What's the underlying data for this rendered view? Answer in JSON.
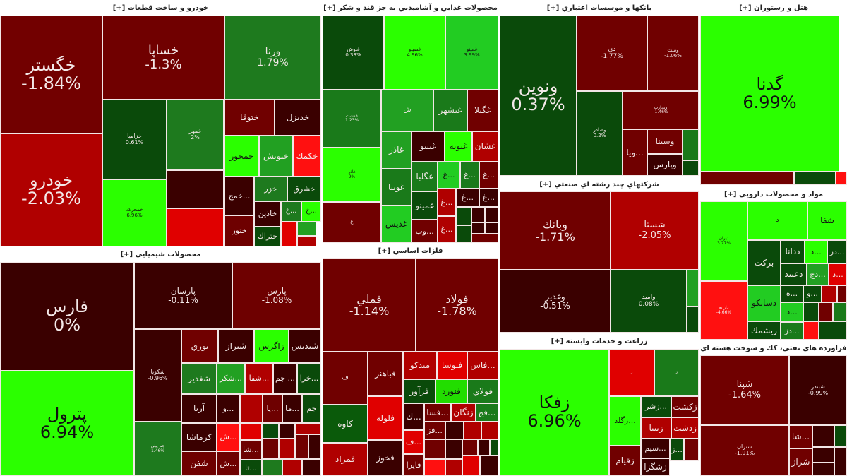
{
  "expand_label": "[+]",
  "sectors": [
    {
      "title": "خودرو و ساخت قطعات",
      "tiles": [
        {
          "name": "خگستر",
          "pct": "-1.84%",
          "color": "#720000"
        },
        {
          "name": "خودرو",
          "pct": "-2.03%",
          "color": "#b00000"
        },
        {
          "name": "خساپا",
          "pct": "-1.3%",
          "color": "#700000"
        },
        {
          "name": "ورنا",
          "pct": "1.79%",
          "color": "#1e7a1e"
        },
        {
          "name": "خزاميا",
          "pct": "0.61%",
          "color": "#0a4a0a"
        },
        {
          "name": "خمهر",
          "pct": "2%",
          "color": "#1e7a1e"
        },
        {
          "color": "#3a0000"
        },
        {
          "color": "#e00000"
        },
        {
          "name": "خمحركه",
          "pct": "6.96%",
          "color": "#2bff00"
        },
        {
          "name": "ختوقا",
          "color": "#700000"
        },
        {
          "name": "خديزل",
          "color": "#3a0000"
        },
        {
          "name": "خمحور",
          "color": "#2bff00"
        },
        {
          "name": "خيويش",
          "color": "#22a022"
        },
        {
          "name": "خكمك",
          "color": "#ff1010"
        },
        {
          "name": "خمح...",
          "color": "#3a0000"
        },
        {
          "name": "خزر",
          "color": "#1e7a1e"
        },
        {
          "name": "خشرق",
          "color": "#0a4a0a"
        },
        {
          "name": "ختور",
          "color": "#6e0000"
        },
        {
          "name": "خاذين",
          "color": "#3a0000"
        },
        {
          "name": "خ...",
          "color": "#1e7a1e"
        },
        {
          "name": "خ...",
          "color": "#2bff00"
        },
        {
          "name": "ختراك",
          "color": "#0a4a0a"
        },
        {
          "color": "#e00000"
        },
        {
          "color": "#22a022"
        },
        {
          "color": "#b00000"
        }
      ]
    },
    {
      "title": "محصولات شيميايي",
      "tiles": [
        {
          "name": "فارس",
          "pct": "0%",
          "color": "#3a0000"
        },
        {
          "name": "پترول",
          "pct": "6.94%",
          "color": "#2bff00"
        },
        {
          "name": "پارسان",
          "pct": "-0.11%",
          "color": "#3a0000"
        },
        {
          "name": "پارس",
          "pct": "-1.08%",
          "color": "#6e0000"
        },
        {
          "name": "شكويا",
          "pct": "-0.96%",
          "color": "#3a0000"
        },
        {
          "name": "جم پيلن",
          "pct": "1.46%",
          "color": "#1e7a1e"
        },
        {
          "name": "نوري",
          "color": "#700000"
        },
        {
          "name": "شيراز",
          "color": "#3a0000"
        },
        {
          "name": "زاگرس",
          "color": "#2bff00"
        },
        {
          "name": "شيديس",
          "color": "#3a0000"
        },
        {
          "name": "شغدير",
          "color": "#1e7a1e"
        },
        {
          "name": "شكر...",
          "color": "#22a022"
        },
        {
          "name": "شفا...",
          "color": "#b00000"
        },
        {
          "name": "جم ...",
          "color": "#3a0000"
        },
        {
          "name": "خرا...",
          "color": "#0a4a0a"
        },
        {
          "name": "آريا",
          "color": "#3a0000"
        },
        {
          "name": "و...",
          "color": "#3a0000"
        },
        {
          "color": "#b00000"
        },
        {
          "name": "يا...",
          "color": "#6e0000"
        },
        {
          "name": "ما...",
          "color": "#3a0000"
        },
        {
          "name": "جم",
          "color": "#0a4a0a"
        },
        {
          "name": "كرماشا",
          "color": "#3a0000"
        },
        {
          "name": "شفن",
          "color": "#6e0000"
        },
        {
          "name": "ش...",
          "color": "#ff1010"
        },
        {
          "name": "ش...",
          "color": "#6e0000"
        },
        {
          "color": "#e00000"
        },
        {
          "name": "شا...",
          "color": "#6e0000"
        },
        {
          "name": "تا...",
          "color": "#0a4a0a"
        },
        {
          "color": "#0a4a0a"
        },
        {
          "color": "#3a0000"
        },
        {
          "color": "#b00000"
        },
        {
          "color": "#6e0000"
        },
        {
          "color": "#b00000"
        },
        {
          "color": "#700000"
        },
        {
          "color": "#3a0000"
        },
        {
          "color": "#1e7a1e"
        },
        {
          "color": "#b00000"
        },
        {
          "color": "#3a0000"
        }
      ]
    },
    {
      "title": "محصولات غذايي و آشاميدني به جز قند و شكر",
      "tiles": [
        {
          "name": "غنوش",
          "pct": "0.33%",
          "color": "#0a4a0a"
        },
        {
          "name": "غصينو",
          "pct": "4.96%",
          "color": "#2bff00"
        },
        {
          "name": "غمينو",
          "pct": "3.99%",
          "color": "#22cc22"
        },
        {
          "name": "غدشت",
          "pct": "1.23%",
          "color": "#1a7a1a"
        },
        {
          "name": "غاذر",
          "pct": "9%",
          "color": "#2bff00"
        },
        {
          "name": "غ",
          "color": "#700000"
        },
        {
          "name": "ش",
          "color": "#22a022"
        },
        {
          "name": "غبشهر",
          "color": "#1a7a1a"
        },
        {
          "name": "غگيلا",
          "color": "#700000"
        },
        {
          "name": "غاذر",
          "color": "#22a022"
        },
        {
          "name": "غبينو",
          "color": "#3a0000"
        },
        {
          "name": "غبونه",
          "color": "#2bff00"
        },
        {
          "name": "غشان",
          "color": "#b00000"
        },
        {
          "name": "غويتا",
          "color": "#1a7a1a"
        },
        {
          "name": "غديس",
          "color": "#22cc22"
        },
        {
          "name": "غگلبا",
          "color": "#1a7a1a"
        },
        {
          "name": "غ...",
          "color": "#22cc22"
        },
        {
          "name": "غ...",
          "color": "#1a7a1a"
        },
        {
          "name": "غ...",
          "color": "#700000"
        },
        {
          "name": "غمينو",
          "color": "#0a4a0a"
        },
        {
          "name": "وب...",
          "color": "#700000"
        },
        {
          "name": "غ...",
          "color": "#b00000"
        },
        {
          "name": "غ...",
          "color": "#b00000"
        },
        {
          "name": "غ...",
          "color": "#3a0000"
        },
        {
          "name": "غ...",
          "color": "#3a0000"
        },
        {
          "color": "#0a4a0a"
        },
        {
          "color": "#0a4a0a"
        },
        {
          "color": "#3a0000"
        },
        {
          "color": "#3a0000"
        },
        {
          "color": "#3a0000"
        },
        {
          "color": "#3a0000"
        },
        {
          "color": "#700000"
        }
      ]
    },
    {
      "title": "فلزات اساسي",
      "tiles": [
        {
          "name": "فملي",
          "pct": "-1.14%",
          "color": "#700000"
        },
        {
          "name": "فولاد",
          "pct": "-1.78%",
          "color": "#700000"
        },
        {
          "name": "ف",
          "color": "#700000"
        },
        {
          "name": "فباهنر",
          "color": "#700000"
        },
        {
          "name": "كاوه",
          "color": "#0a5a0a"
        },
        {
          "name": "فلوله",
          "color": "#e00000"
        },
        {
          "name": "فمراد",
          "color": "#b00000"
        },
        {
          "name": "فخوز",
          "color": "#3a0000"
        },
        {
          "name": "ميدكو",
          "color": "#b00000"
        },
        {
          "name": "فتوسا",
          "color": "#e00000"
        },
        {
          "name": "فاس...",
          "color": "#b00000"
        },
        {
          "name": "فرآور",
          "color": "#0a4a0a"
        },
        {
          "name": "فنورد",
          "color": "#22dd00"
        },
        {
          "name": "فولاي",
          "color": "#1a7a1a"
        },
        {
          "name": "ك...",
          "color": "#3a0000"
        },
        {
          "name": "فسا...",
          "color": "#700000"
        },
        {
          "name": "زنگان",
          "color": "#b00000"
        },
        {
          "name": "فج...",
          "color": "#1a7a1a"
        },
        {
          "name": "ف...",
          "color": "#e00000"
        },
        {
          "name": "فايرا",
          "color": "#700000"
        },
        {
          "name": "فز...",
          "color": "#700000"
        },
        {
          "color": "#3a0000"
        },
        {
          "color": "#b00000"
        },
        {
          "color": "#b00000"
        },
        {
          "color": "#700000"
        },
        {
          "color": "#3a0000"
        },
        {
          "color": "#700000"
        },
        {
          "color": "#3a0000"
        },
        {
          "color": "#0a4a0a"
        },
        {
          "color": "#ff1010"
        },
        {
          "color": "#b00000"
        },
        {
          "color": "#e00000"
        },
        {
          "color": "#3a0000"
        }
      ]
    },
    {
      "title": "بانكها و موسسات اعتباري",
      "tiles": [
        {
          "name": "ونوين",
          "pct": "0.37%",
          "color": "#0a4a0a"
        },
        {
          "name": "دي",
          "pct": "-1.77%",
          "color": "#700000"
        },
        {
          "name": "وملت",
          "pct": "-1.06%",
          "color": "#700000"
        },
        {
          "name": "وصادر",
          "pct": "0.2%",
          "color": "#0a4a0a"
        },
        {
          "name": "وتجارت",
          "pct": "-1.46%",
          "color": "#700000"
        },
        {
          "name": "ويا...",
          "color": "#700000"
        },
        {
          "name": "وسينا",
          "color": "#700000"
        },
        {
          "name": "وپارس",
          "color": "#3a0000"
        },
        {
          "color": "#1a7a1a"
        },
        {
          "color": "#0a4a0a"
        }
      ]
    },
    {
      "title": "شركتهاي چند رشته اي صنعتي",
      "tiles": [
        {
          "name": "وبانك",
          "pct": "-1.71%",
          "color": "#700000"
        },
        {
          "name": "شستا",
          "pct": "-2.05%",
          "color": "#b00000"
        },
        {
          "name": "وغدير",
          "pct": "-0.51%",
          "color": "#3a0000"
        },
        {
          "name": "واميد",
          "pct": "0.08%",
          "color": "#0a4a0a"
        },
        {
          "color": "#22a022"
        },
        {
          "color": "#0a4a0a"
        }
      ]
    },
    {
      "title": "زراعت و خدمات وابسته",
      "tiles": [
        {
          "name": "زفكا",
          "pct": "6.96%",
          "color": "#2bff00"
        },
        {
          "name": "ز",
          "color": "#e00000"
        },
        {
          "name": "ز",
          "color": "#1a7a1a"
        },
        {
          "name": "زگلد...",
          "color": "#2bff00"
        },
        {
          "name": "زشر...",
          "color": "#0a4a0a"
        },
        {
          "name": "زكشت",
          "color": "#700000"
        },
        {
          "name": "زبينا",
          "color": "#b00000"
        },
        {
          "name": "زدشت",
          "color": "#b00000"
        },
        {
          "name": "زقيام",
          "color": "#700000"
        },
        {
          "name": "سيم...",
          "color": "#3a0000"
        },
        {
          "name": "زشگزا",
          "color": "#3a0000"
        },
        {
          "name": "ز...",
          "color": "#0a4a0a"
        },
        {
          "color": "#700000"
        }
      ]
    },
    {
      "title": "هتل و رستوران",
      "tiles": [
        {
          "name": "گدنا",
          "pct": "6.99%",
          "color": "#2bff00"
        },
        {
          "color": "#700000"
        },
        {
          "color": "#0a4a0a"
        },
        {
          "color": "#ff1010"
        }
      ]
    },
    {
      "title": "مواد و محصولات دارويي",
      "tiles": [
        {
          "name": "ديران",
          "pct": "3.77%",
          "color": "#2bff00"
        },
        {
          "name": "دارانه",
          "pct": "-4.66%",
          "color": "#ff1010"
        },
        {
          "name": "د",
          "color": "#2bff00"
        },
        {
          "name": "شفا",
          "color": "#2bff00"
        },
        {
          "name": "بركت",
          "color": "#0a4a0a"
        },
        {
          "name": "ددانا",
          "color": "#0a4a0a"
        },
        {
          "name": "د...",
          "color": "#2bff00"
        },
        {
          "name": "در...",
          "color": "#0a4a0a"
        },
        {
          "name": "دعبيد",
          "color": "#0a4a0a"
        },
        {
          "name": "دج...",
          "color": "#22a022"
        },
        {
          "name": "د...",
          "color": "#e00000"
        },
        {
          "name": "دسانكو",
          "color": "#22cc22"
        },
        {
          "name": "ريشمك",
          "color": "#0a4a0a"
        },
        {
          "name": "ه...",
          "color": "#0a4a0a"
        },
        {
          "name": "د...",
          "color": "#22cc22"
        },
        {
          "name": "دز...",
          "color": "#1a7a1a"
        },
        {
          "name": "و...",
          "color": "#0a4a0a"
        },
        {
          "color": "#b00000"
        },
        {
          "color": "#700000"
        },
        {
          "color": "#0a4a0a"
        },
        {
          "color": "#700000"
        },
        {
          "color": "#1a7a1a"
        },
        {
          "color": "#ff1010"
        },
        {
          "color": "#0a4a0a"
        }
      ]
    },
    {
      "title": "فراورده هاي نفتي، كك و سوخت هسته اي",
      "tiles": [
        {
          "name": "شپنا",
          "pct": "-1.64%",
          "color": "#700000"
        },
        {
          "name": "شبندر",
          "pct": "-0.99%",
          "color": "#3a0000"
        },
        {
          "name": "شتران",
          "pct": "-1.91%",
          "color": "#700000"
        },
        {
          "name": "شا...",
          "color": "#700000"
        },
        {
          "name": "شراز",
          "color": "#700000"
        },
        {
          "color": "#3a0000"
        },
        {
          "color": "#0a4a0a"
        },
        {
          "color": "#3a0000"
        },
        {
          "color": "#3a0000"
        },
        {
          "color": "#3a0000"
        }
      ]
    }
  ]
}
